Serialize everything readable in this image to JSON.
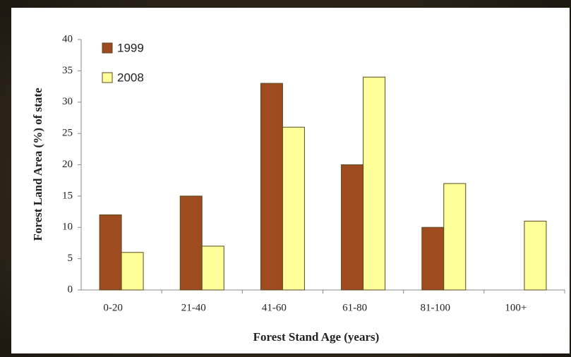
{
  "chart_data": {
    "type": "bar",
    "xlabel": "Forest Stand Age (years)",
    "ylabel": "Forest Land Area (%) of state",
    "categories": [
      "0-20",
      "21-40",
      "41-60",
      "61-80",
      "81-100",
      "100+"
    ],
    "series": [
      {
        "name": "1999",
        "color": "#9e4b1f",
        "values": [
          12,
          15,
          33,
          20,
          10,
          null
        ]
      },
      {
        "name": "2008",
        "color": "#ffff99",
        "values": [
          6,
          7,
          26,
          34,
          17,
          11
        ]
      }
    ],
    "ylim": [
      0,
      40
    ],
    "yticks": [
      0,
      5,
      10,
      15,
      20,
      25,
      30,
      35,
      40
    ],
    "legend": "upper left"
  }
}
